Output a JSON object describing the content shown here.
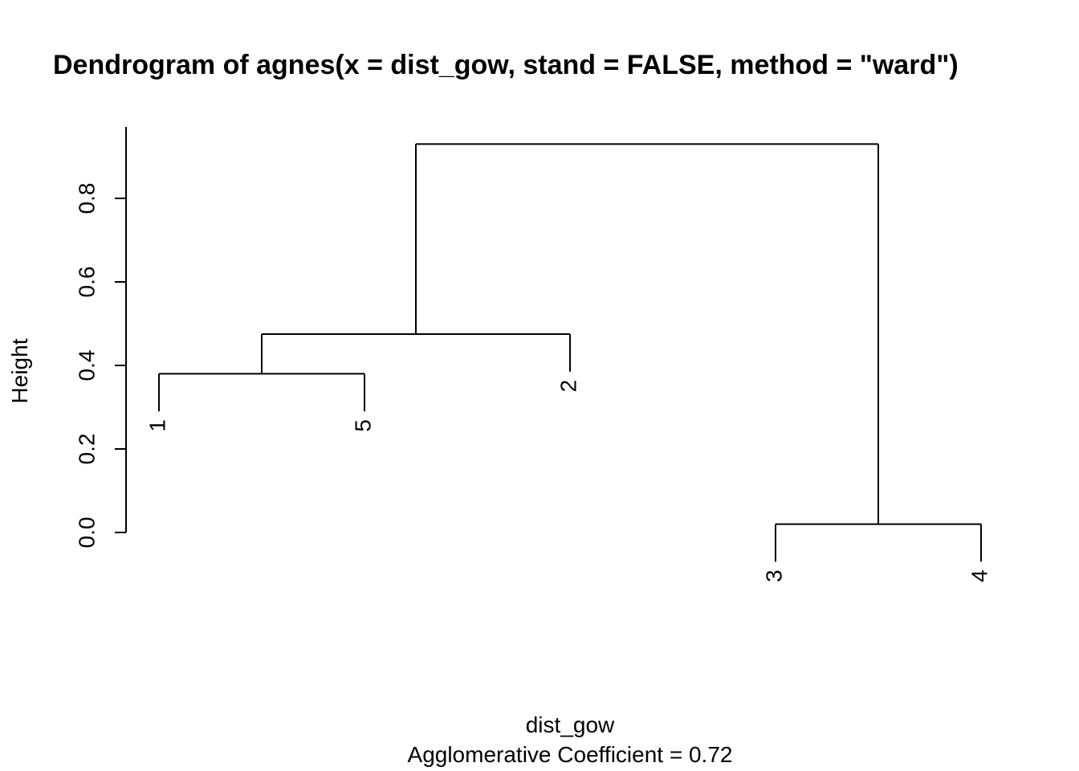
{
  "chart_data": {
    "type": "dendrogram",
    "title": "Dendrogram of  agnes(x = dist_gow, stand = FALSE, method = \"ward\")",
    "xlabel": "dist_gow",
    "sublabel": "Agglomerative Coefficient =  0.72",
    "ylabel": "Height",
    "ylim": [
      0.0,
      0.9
    ],
    "yticks": [
      "0.0",
      "0.2",
      "0.4",
      "0.6",
      "0.8"
    ],
    "yticks_values": [
      0.0,
      0.2,
      0.4,
      0.6,
      0.8
    ],
    "leaf_order": [
      "1",
      "5",
      "2",
      "3",
      "4"
    ],
    "merges": [
      {
        "members": [
          "3",
          "4"
        ],
        "height": 0.02
      },
      {
        "members": [
          "1",
          "5"
        ],
        "height": 0.38
      },
      {
        "members": [
          "1",
          "5",
          "2"
        ],
        "height": 0.475
      },
      {
        "members": [
          "1",
          "5",
          "2",
          "3",
          "4"
        ],
        "height": 0.93
      }
    ],
    "leaf_label_offset": 0.09,
    "line_color": "#000000"
  }
}
